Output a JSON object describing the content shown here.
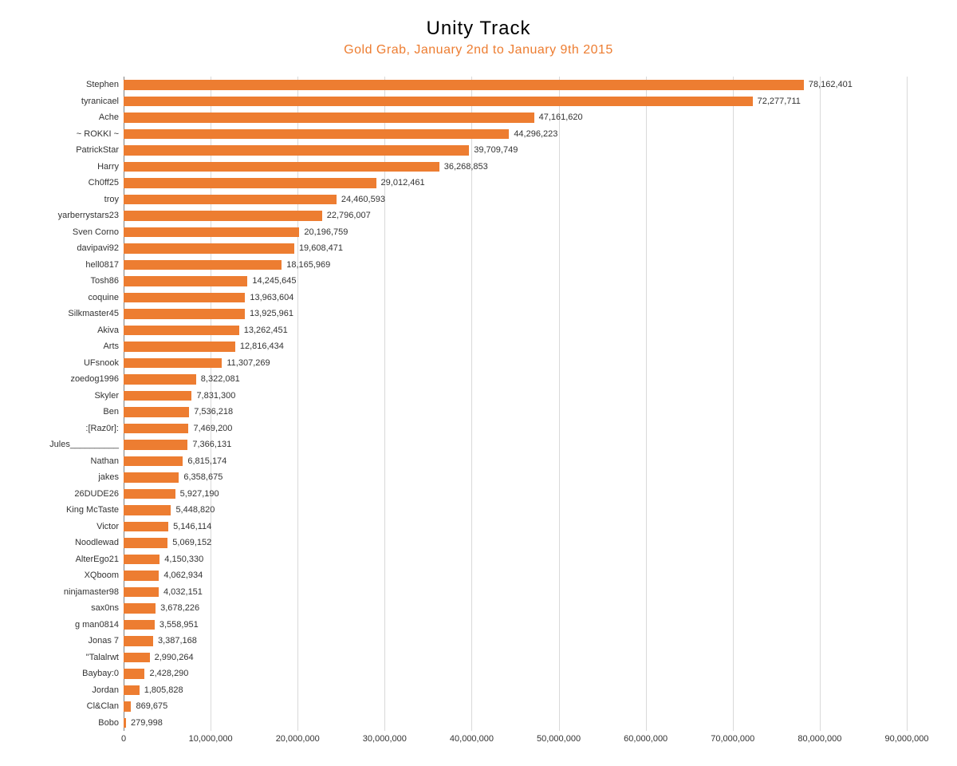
{
  "chart": {
    "type": "bar-horizontal",
    "title": "Unity Track",
    "subtitle": "Gold Grab, January 2nd to January 9th 2015",
    "title_color": "#000000",
    "subtitle_color": "#ed7d31",
    "title_fontsize": 24,
    "subtitle_fontsize": 16,
    "background_color": "#ffffff",
    "bar_color": "#ed7d31",
    "grid_color": "#d9d9d9",
    "axis_color": "#808080",
    "label_color": "#333333",
    "label_fontsize": 11,
    "xlim": [
      0,
      90000000
    ],
    "xtick_step": 10000000,
    "xticks": [
      {
        "v": 0,
        "label": "0"
      },
      {
        "v": 10000000,
        "label": "10,000,000"
      },
      {
        "v": 20000000,
        "label": "20,000,000"
      },
      {
        "v": 30000000,
        "label": "30,000,000"
      },
      {
        "v": 40000000,
        "label": "40,000,000"
      },
      {
        "v": 50000000,
        "label": "50,000,000"
      },
      {
        "v": 60000000,
        "label": "60,000,000"
      },
      {
        "v": 70000000,
        "label": "70,000,000"
      },
      {
        "v": 80000000,
        "label": "80,000,000"
      },
      {
        "v": 90000000,
        "label": "90,000,000"
      }
    ],
    "data": [
      {
        "name": "Stephen",
        "value": 78162401,
        "label": "78,162,401"
      },
      {
        "name": "tyranicael",
        "value": 72277711,
        "label": "72,277,711"
      },
      {
        "name": "Ache",
        "value": 47161620,
        "label": "47,161,620"
      },
      {
        "name": "~ ROKKI ~",
        "value": 44296223,
        "label": "44,296,223"
      },
      {
        "name": "PatrickStar",
        "value": 39709749,
        "label": "39,709,749"
      },
      {
        "name": "Harry",
        "value": 36268853,
        "label": "36,268,853"
      },
      {
        "name": "Ch0ff25",
        "value": 29012461,
        "label": "29,012,461"
      },
      {
        "name": "troy",
        "value": 24460593,
        "label": "24,460,593"
      },
      {
        "name": "yarberrystars23",
        "value": 22796007,
        "label": "22,796,007"
      },
      {
        "name": "Sven Corno",
        "value": 20196759,
        "label": "20,196,759"
      },
      {
        "name": "davipavi92",
        "value": 19608471,
        "label": "19,608,471"
      },
      {
        "name": "hell0817",
        "value": 18165969,
        "label": "18,165,969"
      },
      {
        "name": "Tosh86",
        "value": 14245645,
        "label": "14,245,645"
      },
      {
        "name": "coquine",
        "value": 13963604,
        "label": "13,963,604"
      },
      {
        "name": "Silkmaster45",
        "value": 13925961,
        "label": "13,925,961"
      },
      {
        "name": "Akiva",
        "value": 13262451,
        "label": "13,262,451"
      },
      {
        "name": "Arts",
        "value": 12816434,
        "label": "12,816,434"
      },
      {
        "name": "UFsnook",
        "value": 11307269,
        "label": "11,307,269"
      },
      {
        "name": "zoedog1996",
        "value": 8322081,
        "label": "8,322,081"
      },
      {
        "name": "Skyler",
        "value": 7831300,
        "label": "7,831,300"
      },
      {
        "name": "Ben",
        "value": 7536218,
        "label": "7,536,218"
      },
      {
        "name": ":[Raz0r]:",
        "value": 7469200,
        "label": "7,469,200"
      },
      {
        "name": "Jules__________",
        "value": 7366131,
        "label": "7,366,131"
      },
      {
        "name": "Nathan",
        "value": 6815174,
        "label": "6,815,174"
      },
      {
        "name": "jakes",
        "value": 6358675,
        "label": "6,358,675"
      },
      {
        "name": "26DUDE26",
        "value": 5927190,
        "label": "5,927,190"
      },
      {
        "name": "King McTaste",
        "value": 5448820,
        "label": "5,448,820"
      },
      {
        "name": "Victor",
        "value": 5146114,
        "label": "5,146,114"
      },
      {
        "name": "Noodlewad",
        "value": 5069152,
        "label": "5,069,152"
      },
      {
        "name": "AlterEgo21",
        "value": 4150330,
        "label": "4,150,330"
      },
      {
        "name": "XQboom",
        "value": 4062934,
        "label": "4,062,934"
      },
      {
        "name": "ninjamaster98",
        "value": 4032151,
        "label": "4,032,151"
      },
      {
        "name": "sax0ns",
        "value": 3678226,
        "label": "3,678,226"
      },
      {
        "name": "g man0814",
        "value": 3558951,
        "label": "3,558,951"
      },
      {
        "name": "Jonas 7",
        "value": 3387168,
        "label": "3,387,168"
      },
      {
        "name": "\"Talalrwt",
        "value": 2990264,
        "label": "2,990,264"
      },
      {
        "name": "Baybay:0",
        "value": 2428290,
        "label": "2,428,290"
      },
      {
        "name": "Jordan",
        "value": 1805828,
        "label": "1,805,828"
      },
      {
        "name": "Cl&Clan",
        "value": 869675,
        "label": "869,675"
      },
      {
        "name": "Bobo",
        "value": 279998,
        "label": "279,998"
      }
    ]
  }
}
